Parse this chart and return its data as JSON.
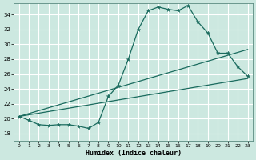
{
  "xlabel": "Humidex (Indice chaleur)",
  "bg_color": "#cce8e0",
  "grid_color": "#ffffff",
  "line_color": "#1a6b5e",
  "xlim": [
    -0.5,
    23.5
  ],
  "ylim": [
    17.0,
    35.5
  ],
  "yticks": [
    18,
    20,
    22,
    24,
    26,
    28,
    30,
    32,
    34
  ],
  "xticks": [
    0,
    1,
    2,
    3,
    4,
    5,
    6,
    7,
    8,
    9,
    10,
    11,
    12,
    13,
    14,
    15,
    16,
    17,
    18,
    19,
    20,
    21,
    22,
    23
  ],
  "series1_x": [
    0,
    1,
    2,
    3,
    4,
    5,
    6,
    7,
    8,
    9,
    10,
    11,
    12,
    13,
    14,
    15,
    16,
    17,
    18,
    19,
    20,
    21,
    22,
    23
  ],
  "series1_y": [
    20.3,
    19.8,
    19.2,
    19.1,
    19.2,
    19.2,
    19.0,
    18.7,
    19.5,
    23.0,
    24.5,
    28.0,
    32.0,
    34.5,
    35.0,
    34.7,
    34.5,
    35.2,
    33.0,
    31.5,
    28.8,
    28.8,
    27.0,
    25.7
  ],
  "line2_x": [
    0,
    23
  ],
  "line2_y": [
    20.3,
    29.3
  ],
  "line3_x": [
    0,
    23
  ],
  "line3_y": [
    20.3,
    25.4
  ],
  "series1_markers_x": [
    0,
    1,
    2,
    3,
    4,
    5,
    6,
    7,
    8,
    9,
    10,
    11,
    12,
    13,
    14,
    15,
    16,
    17,
    18,
    19,
    20,
    21,
    22,
    23
  ],
  "series1_markers_y": [
    20.3,
    19.8,
    19.2,
    19.1,
    19.2,
    19.2,
    19.0,
    18.7,
    19.5,
    23.0,
    24.5,
    28.0,
    32.0,
    34.5,
    35.0,
    34.7,
    34.5,
    35.2,
    33.0,
    31.5,
    28.8,
    28.8,
    27.0,
    25.7
  ]
}
